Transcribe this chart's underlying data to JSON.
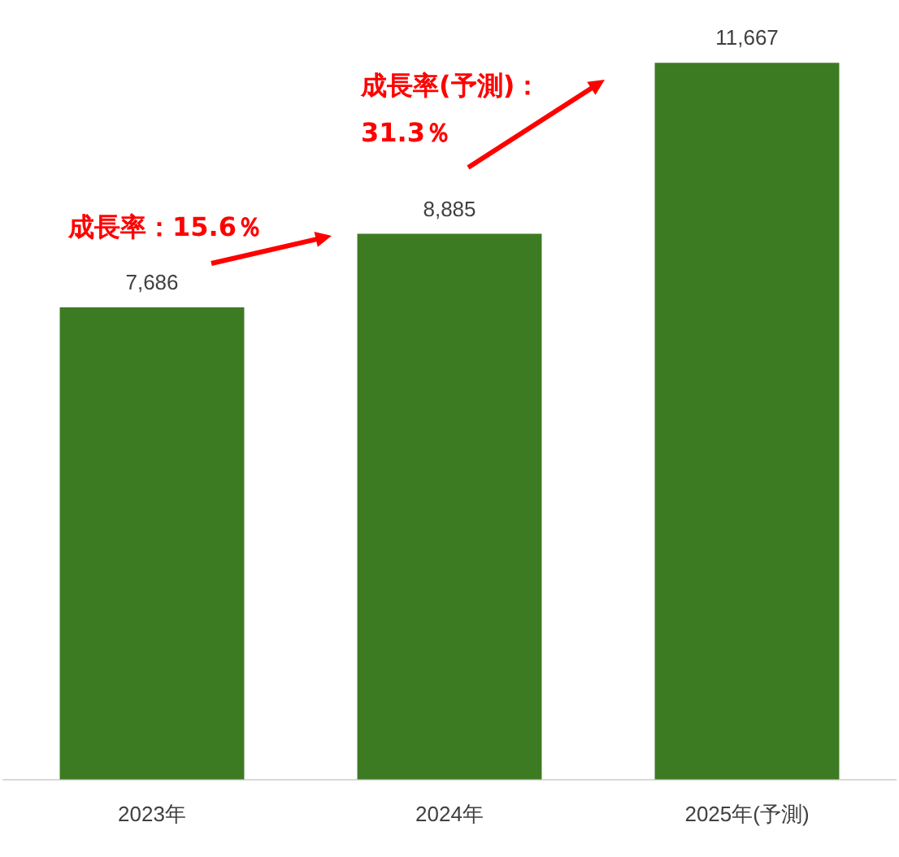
{
  "chart_data": {
    "type": "bar",
    "categories": [
      "2023年",
      "2024年",
      "2025年(予測)"
    ],
    "values": [
      7686,
      8885,
      11667
    ],
    "color": "#3d7b23",
    "value_labels": [
      "7,686",
      "8,885",
      "11,667"
    ],
    "annotations": [
      "成長率：15.6％",
      "成長率(予測)：31.3％"
    ],
    "grid": false,
    "legend": false,
    "tick_labels": "x"
  }
}
